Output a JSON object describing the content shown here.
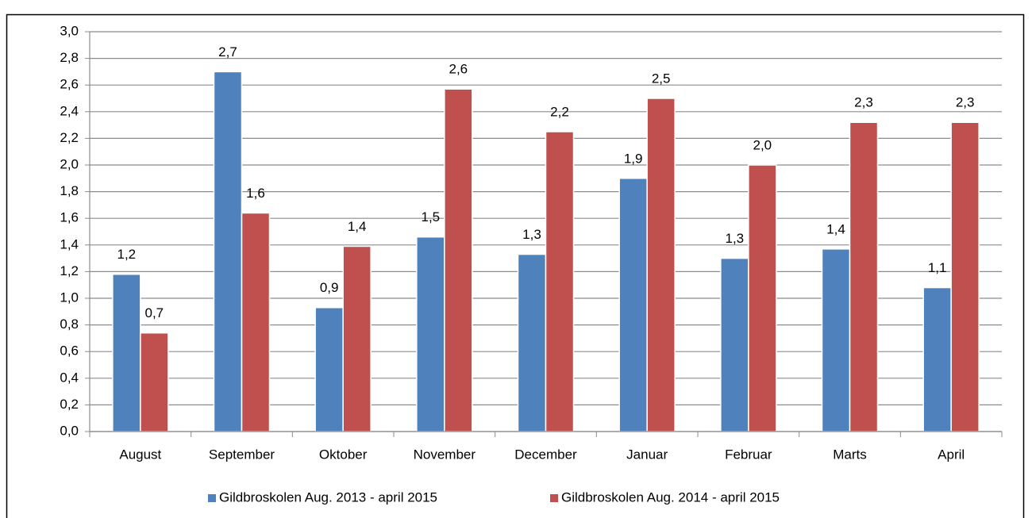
{
  "chart_data": {
    "type": "bar",
    "categories": [
      "August",
      "September",
      "Oktober",
      "November",
      "December",
      "Januar",
      "Februar",
      "Marts",
      "April"
    ],
    "series": [
      {
        "name": "Gildbroskolen Aug. 2013 - april 2015",
        "color": "#4f81bd",
        "values": [
          1.18,
          2.7,
          0.93,
          1.46,
          1.33,
          1.9,
          1.3,
          1.37,
          1.08
        ],
        "value_labels": [
          "1,2",
          "2,7",
          "0,9",
          "1,5",
          "1,3",
          "1,9",
          "1,3",
          "1,4",
          "1,1"
        ]
      },
      {
        "name": "Gildbroskolen Aug. 2014 - april 2015",
        "color": "#c0504d",
        "values": [
          0.74,
          1.64,
          1.39,
          2.57,
          2.25,
          2.5,
          2.0,
          2.32,
          2.32
        ],
        "value_labels": [
          "0,7",
          "1,6",
          "1,4",
          "2,6",
          "2,2",
          "2,5",
          "2,0",
          "2,3",
          "2,3"
        ]
      }
    ],
    "ylim": [
      0,
      3
    ],
    "yticks": [
      {
        "value": 0,
        "label": "0,0"
      },
      {
        "value": 0.2,
        "label": "0,2"
      },
      {
        "value": 0.4,
        "label": "0,4"
      },
      {
        "value": 0.6,
        "label": "0,6"
      },
      {
        "value": 0.8,
        "label": "0,8"
      },
      {
        "value": 1,
        "label": "1,0"
      },
      {
        "value": 1.2,
        "label": "1,2"
      },
      {
        "value": 1.4,
        "label": "1,4"
      },
      {
        "value": 1.6,
        "label": "1,6"
      },
      {
        "value": 1.8,
        "label": "1,8"
      },
      {
        "value": 2,
        "label": "2,0"
      },
      {
        "value": 2.2,
        "label": "2,2"
      },
      {
        "value": 2.4,
        "label": "2,4"
      },
      {
        "value": 2.6,
        "label": "2,6"
      },
      {
        "value": 2.8,
        "label": "2,8"
      },
      {
        "value": 3,
        "label": "3,0"
      }
    ],
    "grid": true,
    "legend": "bottom"
  }
}
